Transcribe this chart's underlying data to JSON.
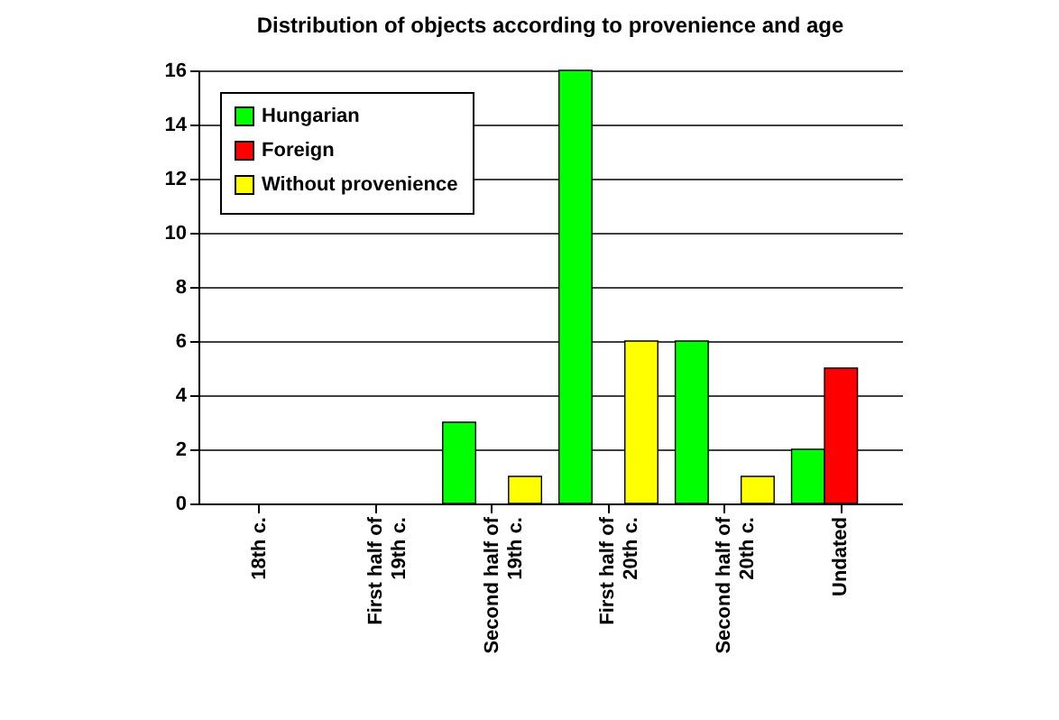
{
  "chart_data": {
    "type": "bar",
    "title": "Distribution of objects according to provenience and age",
    "categories": [
      "18th c.",
      "First half of 19th c.",
      "Second half of 19th c.",
      "First half of 20th c.",
      "Second half of 20th c.",
      "Undated"
    ],
    "series": [
      {
        "name": "Hungarian",
        "color": "#00ff00",
        "values": [
          0,
          0,
          3,
          16,
          6,
          2
        ]
      },
      {
        "name": "Foreign",
        "color": "#ff0000",
        "values": [
          0,
          0,
          0,
          0,
          0,
          5
        ]
      },
      {
        "name": "Without provenience",
        "color": "#ffff00",
        "values": [
          0,
          0,
          1,
          6,
          1,
          0
        ]
      }
    ],
    "ylim": [
      0,
      16
    ],
    "yticks": [
      0,
      2,
      4,
      6,
      8,
      10,
      12,
      14,
      16
    ],
    "grid": "y",
    "legend": "top left"
  }
}
